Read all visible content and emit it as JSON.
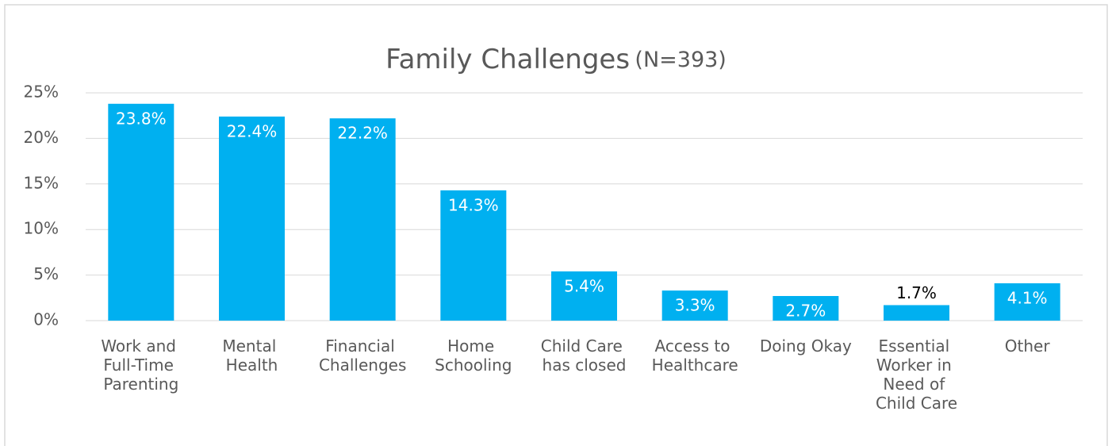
{
  "chart_data": {
    "type": "bar",
    "title": "Family Challenges",
    "title_note": "(N=393)",
    "categories": [
      "Work and Full-Time Parenting",
      "Mental Health",
      "Financial Challenges",
      "Home Schooling",
      "Child Care has closed",
      "Access to Healthcare",
      "Doing Okay",
      "Essential Worker in Need of Child Care",
      "Other"
    ],
    "values": [
      23.8,
      22.4,
      22.2,
      14.3,
      5.4,
      3.3,
      2.7,
      1.7,
      4.1
    ],
    "value_labels": [
      "23.8%",
      "22.4%",
      "22.2%",
      "14.3%",
      "5.4%",
      "3.3%",
      "2.7%",
      "1.7%",
      "4.1%"
    ],
    "color": "#00b0f0",
    "ylim": [
      0,
      25
    ],
    "yticks": [
      {
        "value": 0,
        "label": "0%"
      },
      {
        "value": 5,
        "label": "5%"
      },
      {
        "value": 10,
        "label": "10%"
      },
      {
        "value": 15,
        "label": "15%"
      },
      {
        "value": 20,
        "label": "20%"
      },
      {
        "value": 25,
        "label": "25%"
      }
    ],
    "grid": true
  }
}
